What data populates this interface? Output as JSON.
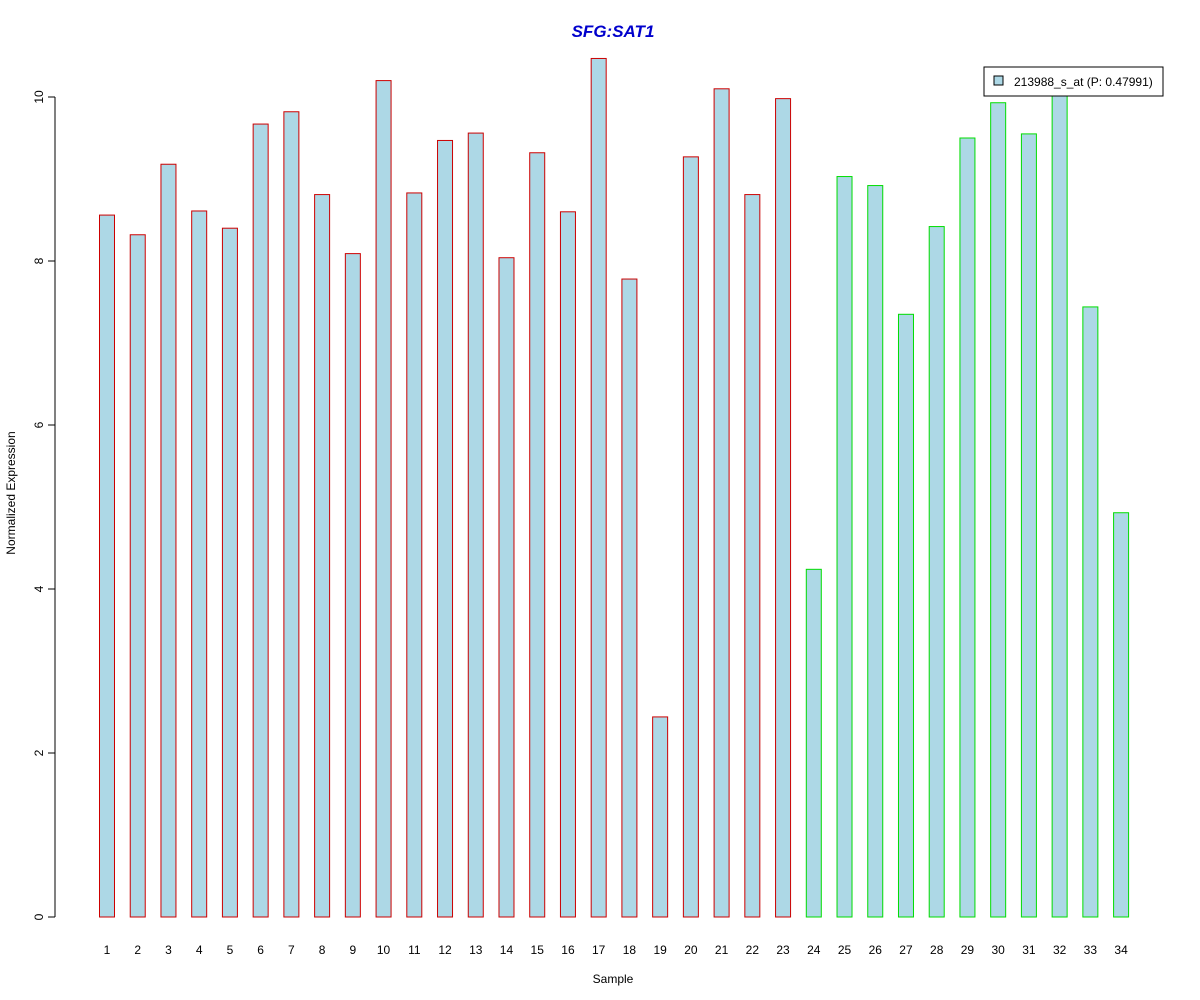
{
  "chart_data": {
    "type": "bar",
    "title": "SFG:SAT1",
    "xlabel": "Sample",
    "ylabel": "Normalized Expression",
    "ylim": [
      0,
      10.5
    ],
    "yticks": [
      0,
      2,
      4,
      6,
      8,
      10
    ],
    "categories": [
      "1",
      "2",
      "3",
      "4",
      "5",
      "6",
      "7",
      "8",
      "9",
      "10",
      "11",
      "12",
      "13",
      "14",
      "15",
      "16",
      "17",
      "18",
      "19",
      "20",
      "21",
      "22",
      "23",
      "24",
      "25",
      "26",
      "27",
      "28",
      "29",
      "30",
      "31",
      "32",
      "33",
      "34"
    ],
    "series": [
      {
        "name": "213988_s_at (P: 0.47991)",
        "values": [
          8.56,
          8.32,
          9.18,
          8.61,
          8.4,
          9.67,
          9.82,
          8.81,
          8.09,
          10.2,
          8.83,
          9.47,
          9.56,
          8.04,
          9.32,
          8.6,
          10.47,
          7.78,
          2.44,
          9.27,
          10.1,
          8.81,
          9.98,
          4.24,
          9.03,
          8.92,
          7.35,
          8.42,
          9.5,
          9.93,
          9.55,
          10.02,
          7.44,
          4.93
        ]
      }
    ],
    "groups": [
      {
        "from": 1,
        "to": 23,
        "border_color": "#cc0000"
      },
      {
        "from": 24,
        "to": 34,
        "border_color": "#00dd00"
      }
    ],
    "bar_fill": "#add8e6",
    "title_color": "#0000cc",
    "legend": {
      "position": "top-right",
      "label": "213988_s_at (P: 0.47991)"
    },
    "grid": false
  }
}
